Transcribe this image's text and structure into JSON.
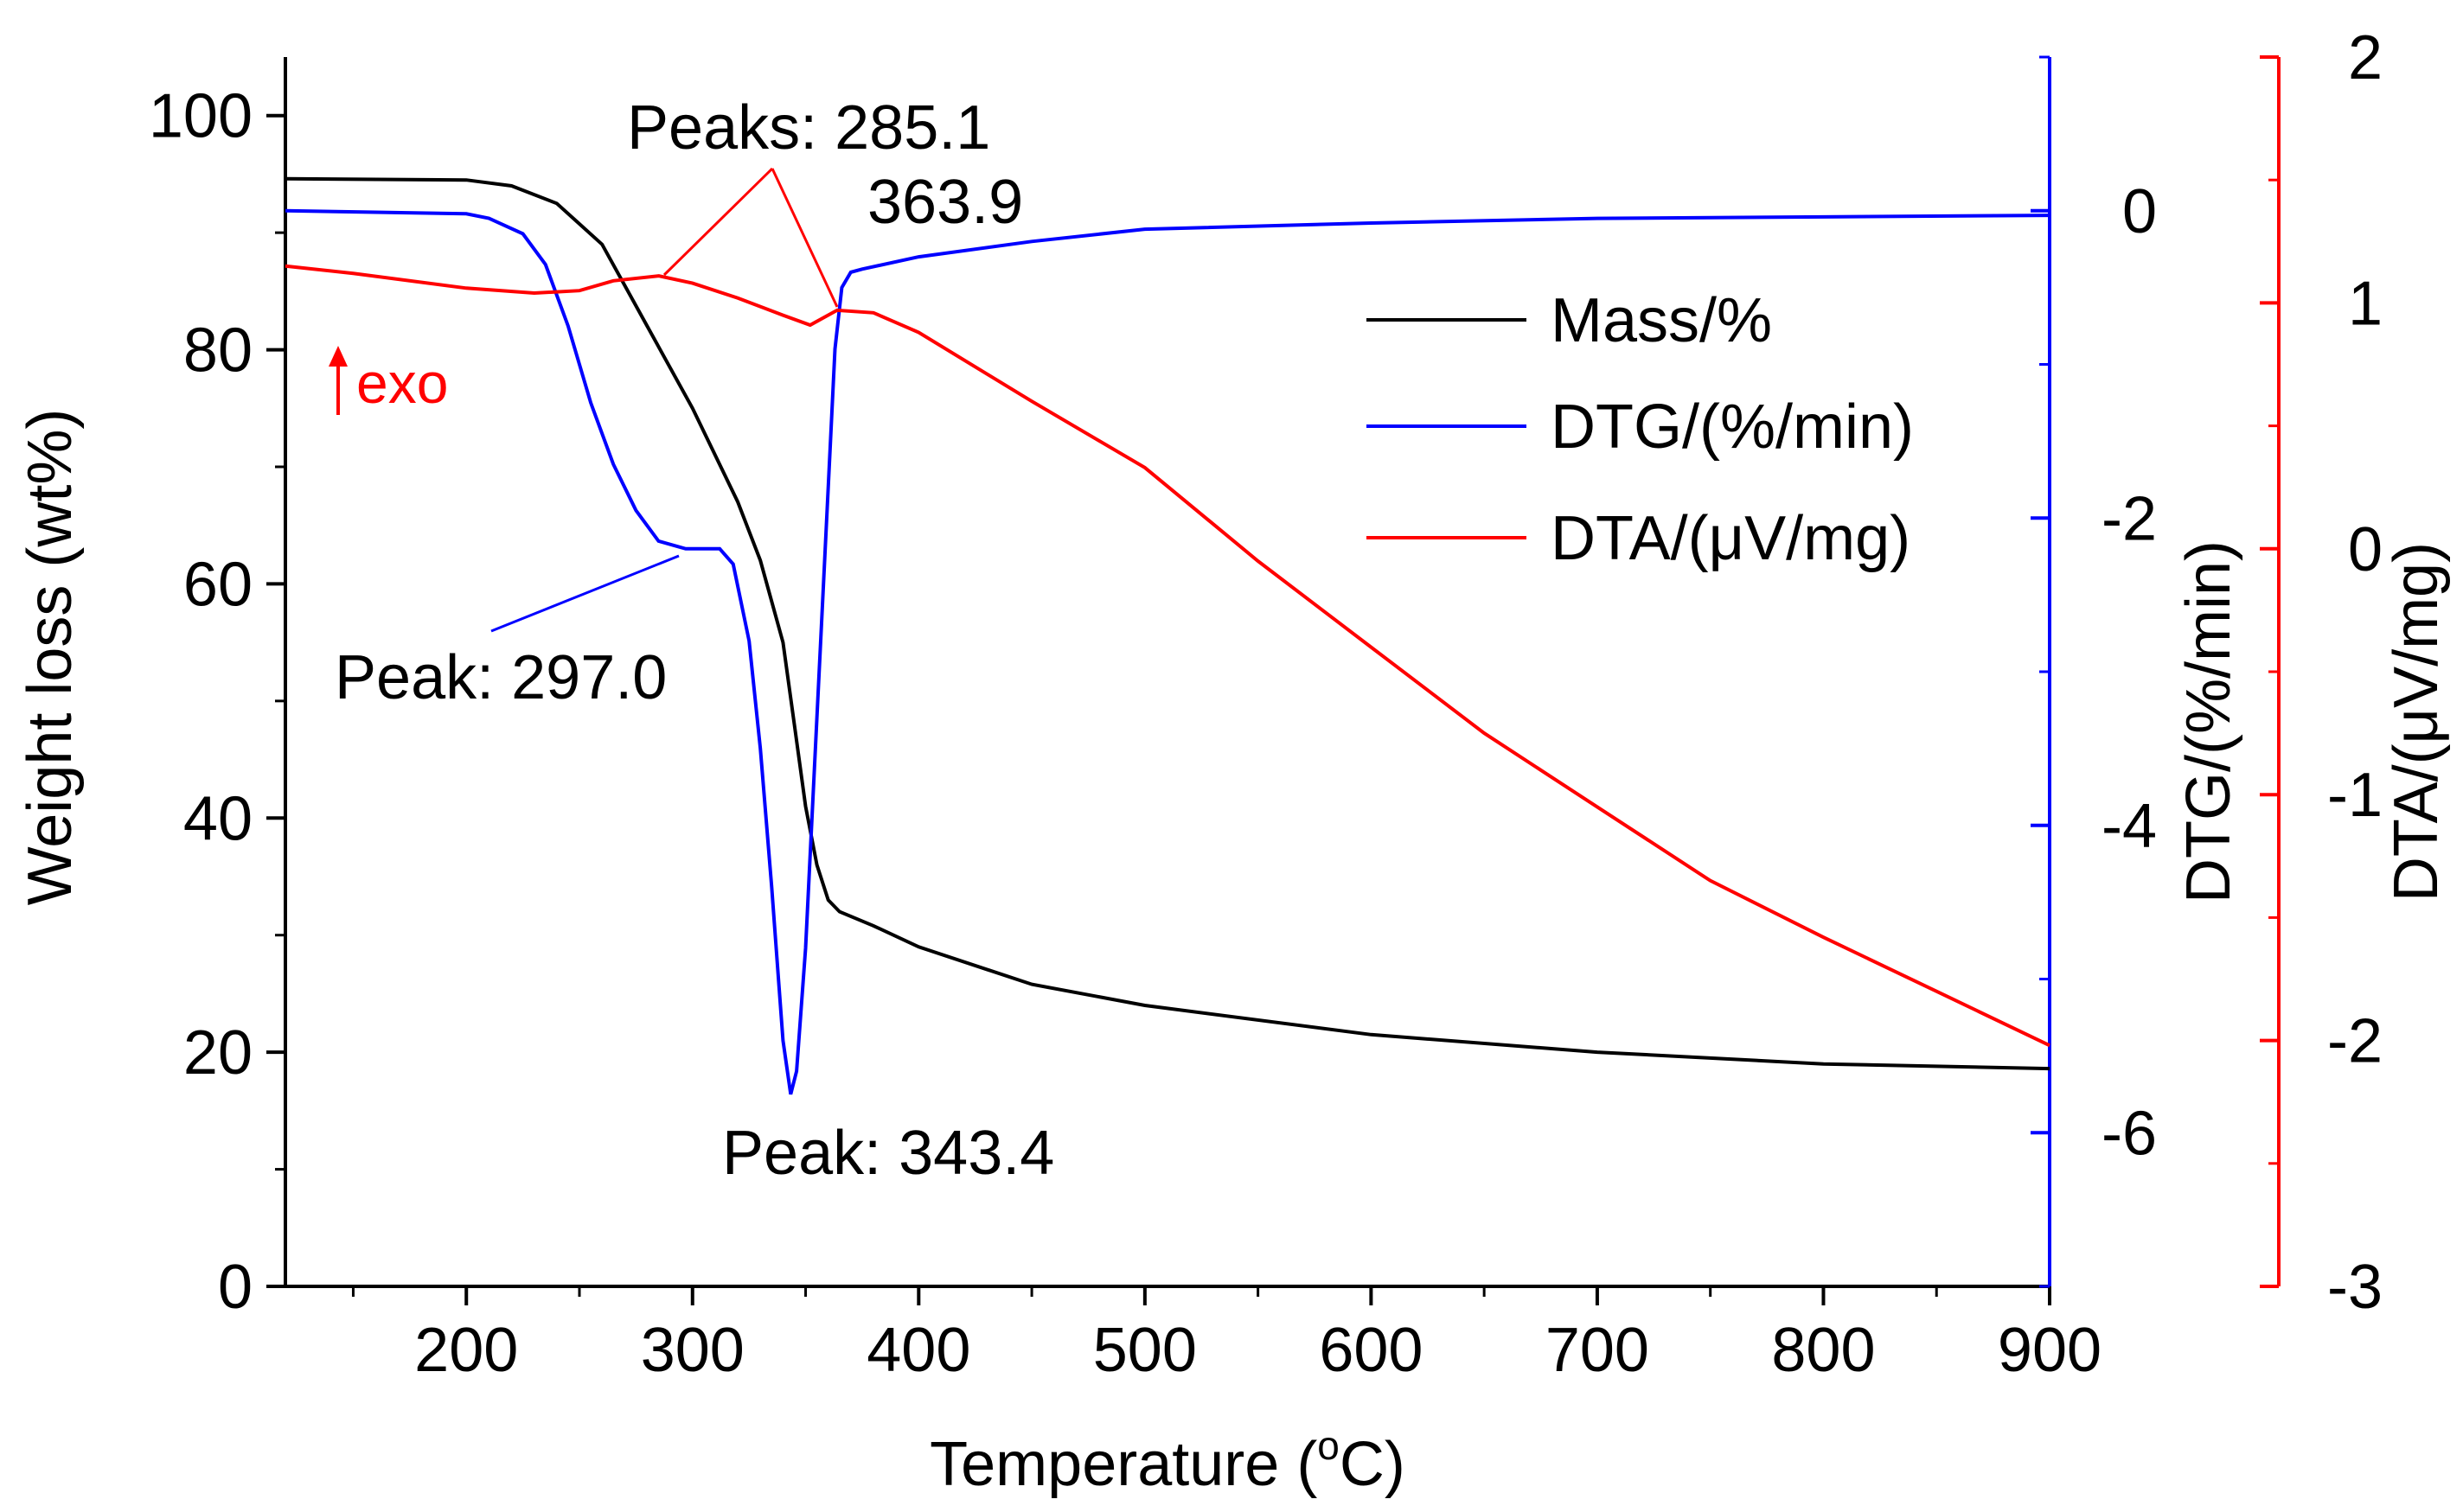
{
  "chart_data": {
    "type": "line",
    "x_axis": {
      "label_prefix": "Temperature (",
      "label_degree": "o",
      "label_suffix": "C)",
      "range": [
        120,
        900
      ],
      "ticks": [
        200,
        300,
        400,
        500,
        600,
        700,
        800,
        900
      ]
    },
    "y_axes": {
      "left": {
        "label": "Weight loss (wt%)",
        "range": [
          0,
          105
        ],
        "ticks": [
          0,
          20,
          40,
          60,
          80,
          100
        ],
        "color": "#000000"
      },
      "right_dtg": {
        "label": "DTG/(%/min)",
        "range": [
          -7,
          1
        ],
        "ticks": [
          0,
          -2,
          -4,
          -6
        ],
        "color": "#0000ff"
      },
      "right_dta": {
        "label_prefix": "DTA/(",
        "label_mu": "μ",
        "label_suffix": "V/mg)",
        "range": [
          -3,
          2
        ],
        "ticks": [
          2,
          1,
          0,
          -1,
          -2,
          -3
        ],
        "color": "#ff0000"
      }
    },
    "series": [
      {
        "name": "Mass/%",
        "axis": "left",
        "color": "#000000",
        "x": [
          120,
          200,
          220,
          240,
          260,
          280,
          300,
          320,
          330,
          340,
          345,
          350,
          355,
          360,
          365,
          380,
          400,
          450,
          500,
          600,
          700,
          800,
          900
        ],
        "y": [
          94.6,
          94.5,
          94.0,
          92.5,
          89.0,
          82.0,
          75.0,
          67.0,
          62.0,
          55.0,
          48.0,
          41.0,
          36.0,
          33.0,
          32.0,
          30.8,
          29.0,
          25.8,
          24.0,
          21.5,
          20.0,
          19.0,
          18.6
        ]
      },
      {
        "name": "DTG/(%/min)",
        "axis": "right_dtg",
        "color": "#0000ff",
        "x": [
          120,
          200,
          210,
          225,
          235,
          245,
          255,
          265,
          275,
          285,
          297,
          305,
          312,
          318,
          325,
          330,
          335,
          340,
          343.4,
          346,
          350,
          355,
          360,
          363,
          366,
          370,
          375,
          400,
          450,
          500,
          600,
          700,
          800,
          900
        ],
        "y": [
          0.0,
          -0.02,
          -0.05,
          -0.15,
          -0.35,
          -0.75,
          -1.25,
          -1.65,
          -1.95,
          -2.15,
          -2.2,
          -2.2,
          -2.2,
          -2.3,
          -2.8,
          -3.5,
          -4.4,
          -5.4,
          -5.75,
          -5.6,
          -4.8,
          -3.3,
          -1.8,
          -0.9,
          -0.5,
          -0.4,
          -0.38,
          -0.3,
          -0.2,
          -0.12,
          -0.08,
          -0.05,
          -0.04,
          -0.03
        ]
      },
      {
        "name": "DTA/(μV/mg)",
        "axis": "right_dta",
        "color": "#ff0000",
        "x": [
          120,
          150,
          200,
          230,
          250,
          265,
          285.1,
          300,
          320,
          340,
          352,
          363.9,
          380,
          400,
          450,
          500,
          550,
          600,
          650,
          700,
          750,
          800,
          850,
          900
        ],
        "y": [
          1.15,
          1.12,
          1.06,
          1.04,
          1.05,
          1.09,
          1.11,
          1.08,
          1.02,
          0.95,
          0.91,
          0.97,
          0.96,
          0.88,
          0.6,
          0.33,
          -0.05,
          -0.4,
          -0.75,
          -1.05,
          -1.35,
          -1.58,
          -1.8,
          -2.02
        ]
      }
    ],
    "annotations": {
      "peaks_dta_line1": "Peaks: 285.1",
      "peaks_dta_line2": "363.9",
      "peak_dtg_shoulder": "Peak: 297.0",
      "peak_dtg_main": "Peak: 343.4",
      "exo": "exo"
    },
    "legend": {
      "placement": "top-right",
      "entries": [
        "Mass/%",
        "DTG/(%/min)",
        "DTA/(μV/mg)"
      ]
    }
  }
}
